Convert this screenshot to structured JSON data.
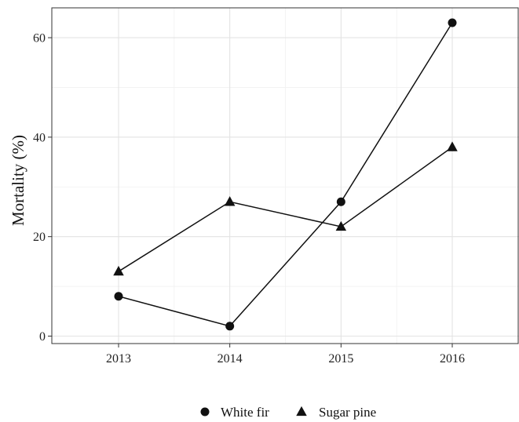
{
  "chart_data": {
    "type": "line",
    "title": "",
    "xlabel": "",
    "ylabel": "Mortality (%)",
    "x": [
      2013,
      2014,
      2015,
      2016
    ],
    "x_tick_labels": [
      "2013",
      "2014",
      "2015",
      "2016"
    ],
    "xlim": [
      2012.4,
      2016.6
    ],
    "ylim": [
      -1.5,
      66
    ],
    "y_ticks": [
      0,
      20,
      40,
      60
    ],
    "y_tick_labels": [
      "0",
      "20",
      "40",
      "60"
    ],
    "grid": true,
    "legend_position": "bottom",
    "series": [
      {
        "name": "White fir",
        "marker": "circle",
        "color": "#111111",
        "values": [
          8,
          2,
          27,
          63
        ]
      },
      {
        "name": "Sugar pine",
        "marker": "triangle",
        "color": "#111111",
        "values": [
          13,
          27,
          22,
          38
        ]
      }
    ]
  }
}
